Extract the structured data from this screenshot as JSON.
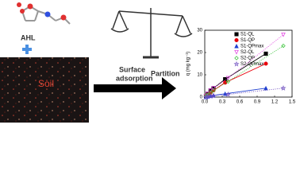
{
  "labels": {
    "molecule": "AHL",
    "soil": "Soil",
    "surface": "Surface",
    "adsorption": "adsorption",
    "partition": "Partition"
  },
  "chart_data": {
    "type": "line",
    "ylabel": "q (mg kg⁻¹)",
    "xlim": [
      0,
      1.5
    ],
    "xticks": [
      {
        "value": 0,
        "label": "0.0"
      },
      0.3,
      0.6,
      0.9,
      1.2,
      1.5
    ],
    "ylim": [
      0,
      30
    ],
    "yticks": [
      0,
      10,
      20,
      30
    ],
    "series": [
      {
        "name": "S1-QL",
        "color": "#000000",
        "marker": "square",
        "dash": "solid",
        "x": [
          0.02,
          0.05,
          0.1,
          0.15,
          0.35,
          1.05
        ],
        "values": [
          0.5,
          1.5,
          3,
          4,
          8,
          19.5
        ]
      },
      {
        "name": "S1-QP",
        "color": "#e8000b",
        "marker": "circle",
        "dash": "solid",
        "x": [
          0.02,
          0.05,
          0.1,
          0.15,
          0.35,
          1.05
        ],
        "values": [
          0.5,
          1,
          2,
          3,
          6.5,
          15
        ]
      },
      {
        "name": "S1-QPmax",
        "color": "#2040d0",
        "marker": "triangle",
        "dash": "solid",
        "x": [
          0.02,
          0.05,
          0.1,
          0.15,
          0.35,
          1.05
        ],
        "values": [
          0,
          0.3,
          0.5,
          0.8,
          1.5,
          4
        ]
      },
      {
        "name": "S2-QL",
        "color": "#e040e0",
        "marker": "triangle-down",
        "dash": "dotted",
        "x": [
          0.02,
          0.05,
          0.1,
          0.15,
          0.4,
          1.35
        ],
        "values": [
          0.5,
          1.5,
          3,
          4,
          8.5,
          28
        ]
      },
      {
        "name": "S2-QP",
        "color": "#30c030",
        "marker": "diamond",
        "dash": "dotted",
        "x": [
          0.02,
          0.05,
          0.1,
          0.15,
          0.4,
          1.35
        ],
        "values": [
          0.5,
          1,
          2,
          3,
          7,
          23
        ]
      },
      {
        "name": "S2-QPmax",
        "color": "#7050c0",
        "marker": "star",
        "dash": "dotted",
        "x": [
          0.02,
          0.05,
          0.1,
          0.15,
          0.4,
          1.35
        ],
        "values": [
          0,
          0.2,
          0.4,
          0.6,
          1.2,
          4
        ]
      }
    ]
  }
}
